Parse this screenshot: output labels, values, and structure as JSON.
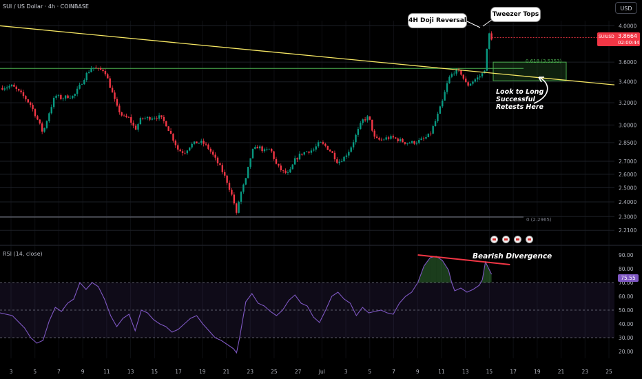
{
  "header": {
    "symbol_line": "SUI / US Dollar · 4h · COINBASE",
    "currency_button": "USD"
  },
  "price_tag": {
    "symbol": "SUIUSD",
    "value": "3.8664",
    "countdown": "02:00:44"
  },
  "rsi": {
    "label": "RSI (14, close)",
    "current_value": "75.55"
  },
  "annotations": {
    "doji": "4H Doji Reversal",
    "tweezer": "Tweezer Tops",
    "long_retest": [
      "Look to Long",
      "Successful",
      "Retests Here"
    ],
    "bearish_divergence": "Bearish Divergence",
    "fib_618": "0.618 (3.5353)",
    "fib_0": "0 (2.2965)"
  },
  "event_flags": [
    "flag-us",
    "flag-us",
    "flag-us",
    "flag-us"
  ],
  "colors": {
    "background": "#000000",
    "up_candle": "#089981",
    "down_candle": "#f23645",
    "trendline": "#f5e663",
    "fib_line": "#4caf50",
    "fib_zone": "#4caf50",
    "rsi_line": "#7e57c2",
    "divergence_line": "#f23645",
    "grid": "#1c1f26",
    "axis_text": "#b2b5be"
  },
  "chart_data": [
    {
      "type": "candlestick",
      "title": "SUI / US Dollar · 4h · COINBASE",
      "y_scale": "log",
      "ylim": [
        2.15,
        4.06
      ],
      "y_ticks": [
        2.21,
        2.3,
        2.4,
        2.5,
        2.6,
        2.7,
        2.85,
        3.0,
        3.2,
        3.4,
        3.6,
        4.0
      ],
      "x_ticks": [
        "3",
        "5",
        "7",
        "9",
        "11",
        "13",
        "15",
        "17",
        "19",
        "21",
        "23",
        "25",
        "27",
        "Jul",
        "3",
        "5",
        "7",
        "9",
        "11",
        "13",
        "15",
        "17",
        "19",
        "21",
        "23",
        "25"
      ],
      "last_price": 3.8664,
      "fib_levels": [
        {
          "ratio": 0.618,
          "price": 3.5353
        },
        {
          "ratio": 0,
          "price": 2.2965
        }
      ],
      "support_zone": [
        3.41,
        3.6
      ],
      "trendline_points": [
        [
          0,
          4.0
        ],
        [
          1.0,
          3.37
        ]
      ],
      "close_path": [
        [
          0.0,
          3.34
        ],
        [
          0.02,
          3.36
        ],
        [
          0.04,
          3.25
        ],
        [
          0.05,
          3.18
        ],
        [
          0.06,
          3.06
        ],
        [
          0.07,
          2.93
        ],
        [
          0.08,
          3.11
        ],
        [
          0.09,
          3.27
        ],
        [
          0.1,
          3.24
        ],
        [
          0.11,
          3.26
        ],
        [
          0.12,
          3.26
        ],
        [
          0.13,
          3.36
        ],
        [
          0.14,
          3.47
        ],
        [
          0.15,
          3.55
        ],
        [
          0.16,
          3.52
        ],
        [
          0.17,
          3.52
        ],
        [
          0.18,
          3.34
        ],
        [
          0.19,
          3.16
        ],
        [
          0.2,
          3.07
        ],
        [
          0.21,
          3.06
        ],
        [
          0.22,
          2.96
        ],
        [
          0.23,
          3.06
        ],
        [
          0.24,
          3.06
        ],
        [
          0.25,
          3.07
        ],
        [
          0.26,
          3.07
        ],
        [
          0.27,
          3.01
        ],
        [
          0.28,
          2.9
        ],
        [
          0.29,
          2.79
        ],
        [
          0.3,
          2.77
        ],
        [
          0.31,
          2.83
        ],
        [
          0.32,
          2.85
        ],
        [
          0.33,
          2.85
        ],
        [
          0.34,
          2.8
        ],
        [
          0.35,
          2.72
        ],
        [
          0.36,
          2.64
        ],
        [
          0.37,
          2.54
        ],
        [
          0.38,
          2.41
        ],
        [
          0.385,
          2.31
        ],
        [
          0.39,
          2.44
        ],
        [
          0.4,
          2.56
        ],
        [
          0.41,
          2.78
        ],
        [
          0.42,
          2.82
        ],
        [
          0.43,
          2.78
        ],
        [
          0.44,
          2.8
        ],
        [
          0.45,
          2.67
        ],
        [
          0.46,
          2.62
        ],
        [
          0.47,
          2.6
        ],
        [
          0.48,
          2.71
        ],
        [
          0.49,
          2.76
        ],
        [
          0.5,
          2.78
        ],
        [
          0.51,
          2.79
        ],
        [
          0.52,
          2.85
        ],
        [
          0.53,
          2.82
        ],
        [
          0.54,
          2.77
        ],
        [
          0.55,
          2.69
        ],
        [
          0.56,
          2.73
        ],
        [
          0.57,
          2.8
        ],
        [
          0.58,
          2.92
        ],
        [
          0.59,
          3.04
        ],
        [
          0.6,
          3.07
        ],
        [
          0.61,
          2.88
        ],
        [
          0.62,
          2.87
        ],
        [
          0.63,
          2.89
        ],
        [
          0.64,
          2.89
        ],
        [
          0.65,
          2.87
        ],
        [
          0.66,
          2.85
        ],
        [
          0.67,
          2.85
        ],
        [
          0.68,
          2.86
        ],
        [
          0.69,
          2.88
        ],
        [
          0.7,
          2.92
        ],
        [
          0.71,
          3.05
        ],
        [
          0.72,
          3.21
        ],
        [
          0.73,
          3.43
        ],
        [
          0.74,
          3.51
        ],
        [
          0.75,
          3.49
        ],
        [
          0.76,
          3.36
        ],
        [
          0.77,
          3.41
        ],
        [
          0.78,
          3.45
        ],
        [
          0.785,
          3.48
        ],
        [
          0.79,
          3.55
        ],
        [
          0.795,
          3.92
        ],
        [
          0.8,
          3.86
        ]
      ]
    },
    {
      "type": "line",
      "title": "RSI (14, close)",
      "ylim": [
        15,
        95
      ],
      "y_ticks": [
        20.0,
        30.0,
        40.0,
        50.0,
        60.0,
        70.0,
        80.0,
        90.0
      ],
      "bands": [
        30,
        50,
        70
      ],
      "series": [
        {
          "values": [
            [
              0.0,
              48
            ],
            [
              0.02,
              46
            ],
            [
              0.04,
              37
            ],
            [
              0.05,
              30
            ],
            [
              0.06,
              26
            ],
            [
              0.07,
              28
            ],
            [
              0.08,
              42
            ],
            [
              0.09,
              52
            ],
            [
              0.1,
              49
            ],
            [
              0.11,
              55
            ],
            [
              0.12,
              58
            ],
            [
              0.13,
              70
            ],
            [
              0.14,
              65
            ],
            [
              0.15,
              70
            ],
            [
              0.16,
              67
            ],
            [
              0.17,
              58
            ],
            [
              0.18,
              46
            ],
            [
              0.19,
              38
            ],
            [
              0.2,
              44
            ],
            [
              0.21,
              47
            ],
            [
              0.22,
              35
            ],
            [
              0.23,
              50
            ],
            [
              0.24,
              48
            ],
            [
              0.25,
              43
            ],
            [
              0.26,
              40
            ],
            [
              0.27,
              38
            ],
            [
              0.28,
              34
            ],
            [
              0.29,
              36
            ],
            [
              0.3,
              40
            ],
            [
              0.31,
              44
            ],
            [
              0.32,
              46
            ],
            [
              0.33,
              40
            ],
            [
              0.34,
              35
            ],
            [
              0.35,
              30
            ],
            [
              0.36,
              28
            ],
            [
              0.37,
              25
            ],
            [
              0.38,
              22
            ],
            [
              0.385,
              19
            ],
            [
              0.39,
              30
            ],
            [
              0.4,
              56
            ],
            [
              0.41,
              62
            ],
            [
              0.42,
              55
            ],
            [
              0.43,
              53
            ],
            [
              0.44,
              49
            ],
            [
              0.45,
              46
            ],
            [
              0.46,
              50
            ],
            [
              0.47,
              57
            ],
            [
              0.48,
              61
            ],
            [
              0.49,
              55
            ],
            [
              0.5,
              53
            ],
            [
              0.51,
              45
            ],
            [
              0.52,
              41
            ],
            [
              0.53,
              50
            ],
            [
              0.54,
              60
            ],
            [
              0.55,
              63
            ],
            [
              0.56,
              58
            ],
            [
              0.57,
              55
            ],
            [
              0.58,
              46
            ],
            [
              0.59,
              52
            ],
            [
              0.6,
              48
            ],
            [
              0.61,
              49
            ],
            [
              0.62,
              50
            ],
            [
              0.63,
              48
            ],
            [
              0.64,
              47
            ],
            [
              0.65,
              55
            ],
            [
              0.66,
              60
            ],
            [
              0.67,
              63
            ],
            [
              0.68,
              70
            ],
            [
              0.69,
              82
            ],
            [
              0.7,
              88
            ],
            [
              0.71,
              89
            ],
            [
              0.72,
              86
            ],
            [
              0.73,
              79
            ],
            [
              0.735,
              70
            ],
            [
              0.74,
              64
            ],
            [
              0.75,
              66
            ],
            [
              0.76,
              63
            ],
            [
              0.77,
              65
            ],
            [
              0.78,
              68
            ],
            [
              0.785,
              72
            ],
            [
              0.79,
              85
            ],
            [
              0.8,
              76
            ]
          ]
        }
      ],
      "divergence_line": [
        [
          0.68,
          90
        ],
        [
          0.83,
          83
        ]
      ]
    }
  ]
}
